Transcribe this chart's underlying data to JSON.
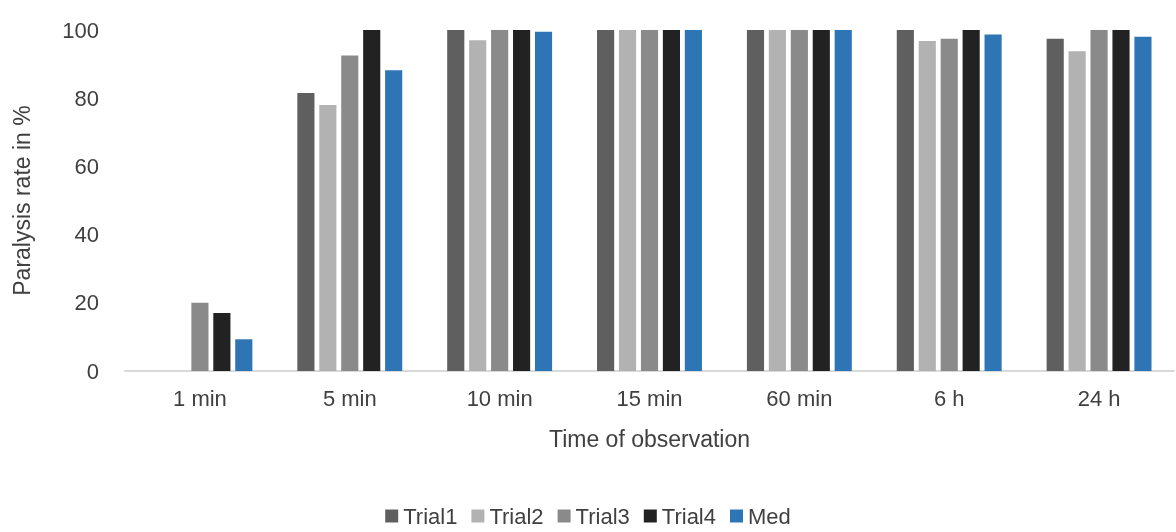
{
  "chart_data": {
    "type": "bar",
    "xlabel": "Time of observation",
    "ylabel": "Paralysis rate in %",
    "categories": [
      "1 min",
      "5 min",
      "10 min",
      "15 min",
      "60 min",
      "6 h",
      "24 h"
    ],
    "series": [
      {
        "name": "Trial1",
        "color": "#5f5f5f",
        "values": [
          0,
          81.5,
          100,
          100,
          100,
          100,
          97.4
        ]
      },
      {
        "name": "Trial2",
        "color": "#b2b2b2",
        "values": [
          0,
          78,
          97,
          100,
          100,
          96.8,
          93.8
        ]
      },
      {
        "name": "Trial3",
        "color": "#8a8a8a",
        "values": [
          20,
          92.5,
          100,
          100,
          100,
          97.4,
          100
        ]
      },
      {
        "name": "Trial4",
        "color": "#222222",
        "values": [
          17,
          100,
          100,
          100,
          100,
          100,
          100
        ]
      },
      {
        "name": "Med",
        "color": "#2e75b6",
        "values": [
          9.3,
          88.2,
          99.5,
          100,
          100,
          98.7,
          98
        ]
      }
    ],
    "ylim": [
      0,
      100
    ],
    "yticks": [
      0,
      20,
      40,
      60,
      80,
      100
    ],
    "grid": false,
    "legend": "bottom"
  }
}
